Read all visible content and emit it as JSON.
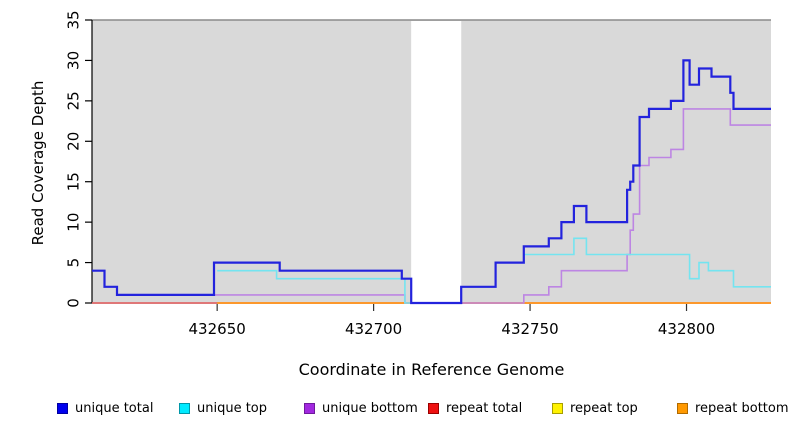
{
  "chart_data": {
    "type": "line",
    "style": "step",
    "title": "",
    "xlabel": "Coordinate in Reference Genome",
    "ylabel": "Read Coverage Depth",
    "xlim": [
      432610,
      432827
    ],
    "ylim": [
      0,
      35
    ],
    "x_ticks": [
      432650,
      432700,
      432750,
      432800
    ],
    "y_ticks": [
      0,
      5,
      10,
      15,
      20,
      25,
      30,
      35
    ],
    "grid": false,
    "legend_position": "bottom",
    "plot_background": "#d9d9d9",
    "page_background": "#ffffff",
    "masked_region": {
      "start": 432712,
      "end": 432728,
      "color": "#ffffff"
    },
    "series": [
      {
        "name": "repeat top",
        "color": "#f0e41e",
        "width": 1.6,
        "points": [
          [
            432610,
            0
          ]
        ]
      },
      {
        "name": "repeat total",
        "color": "#dd5577",
        "width": 1.6,
        "points": [
          [
            432610,
            0
          ]
        ]
      },
      {
        "name": "repeat bottom",
        "color": "#ff9822",
        "width": 1.8,
        "points": [
          [
            432650,
            0
          ]
        ]
      },
      {
        "name": "unique bottom",
        "color": "#bd85e3",
        "width": 1.6,
        "points": [
          [
            432649,
            1
          ],
          [
            432710,
            0
          ],
          [
            432748,
            1
          ],
          [
            432756,
            2
          ],
          [
            432760,
            4
          ],
          [
            432781,
            6
          ],
          [
            432782,
            9
          ],
          [
            432783,
            11
          ],
          [
            432785,
            17
          ],
          [
            432788,
            18
          ],
          [
            432795,
            19
          ],
          [
            432799,
            24
          ],
          [
            432814,
            22
          ]
        ]
      },
      {
        "name": "unique top",
        "color": "#74e4f0",
        "width": 1.6,
        "points": [
          [
            432650,
            4
          ],
          [
            432669,
            3
          ],
          [
            432710,
            0
          ],
          [
            432728,
            2
          ],
          [
            432739,
            5
          ],
          [
            432748,
            6
          ],
          [
            432764,
            8
          ],
          [
            432768,
            6
          ],
          [
            432801,
            3
          ],
          [
            432804,
            5
          ],
          [
            432807,
            4
          ],
          [
            432815,
            2
          ]
        ]
      },
      {
        "name": "unique total",
        "color": "#2323dd",
        "width": 2.2,
        "points": [
          [
            432610,
            4
          ],
          [
            432614,
            2
          ],
          [
            432618,
            1
          ],
          [
            432649,
            5
          ],
          [
            432670,
            4
          ],
          [
            432709,
            3
          ],
          [
            432712,
            0
          ],
          [
            432728,
            2
          ],
          [
            432739,
            5
          ],
          [
            432748,
            7
          ],
          [
            432756,
            8
          ],
          [
            432760,
            10
          ],
          [
            432764,
            12
          ],
          [
            432768,
            10
          ],
          [
            432781,
            14
          ],
          [
            432782,
            15
          ],
          [
            432783,
            17
          ],
          [
            432785,
            23
          ],
          [
            432788,
            24
          ],
          [
            432795,
            25
          ],
          [
            432799,
            30
          ],
          [
            432801,
            27
          ],
          [
            432804,
            29
          ],
          [
            432808,
            28
          ],
          [
            432814,
            26
          ],
          [
            432815,
            24
          ]
        ]
      }
    ],
    "legend": [
      {
        "label": "unique total",
        "fill": "#0000ee",
        "border": "#0000a0"
      },
      {
        "label": "unique top",
        "fill": "#00eaff",
        "border": "#0097a8"
      },
      {
        "label": "unique bottom",
        "fill": "#a228e0",
        "border": "#6f1a9c"
      },
      {
        "label": "repeat total",
        "fill": "#ee1111",
        "border": "#9a0000"
      },
      {
        "label": "repeat top",
        "fill": "#fff200",
        "border": "#a89e00"
      },
      {
        "label": "repeat bottom",
        "fill": "#ff9900",
        "border": "#b06a00"
      }
    ]
  }
}
